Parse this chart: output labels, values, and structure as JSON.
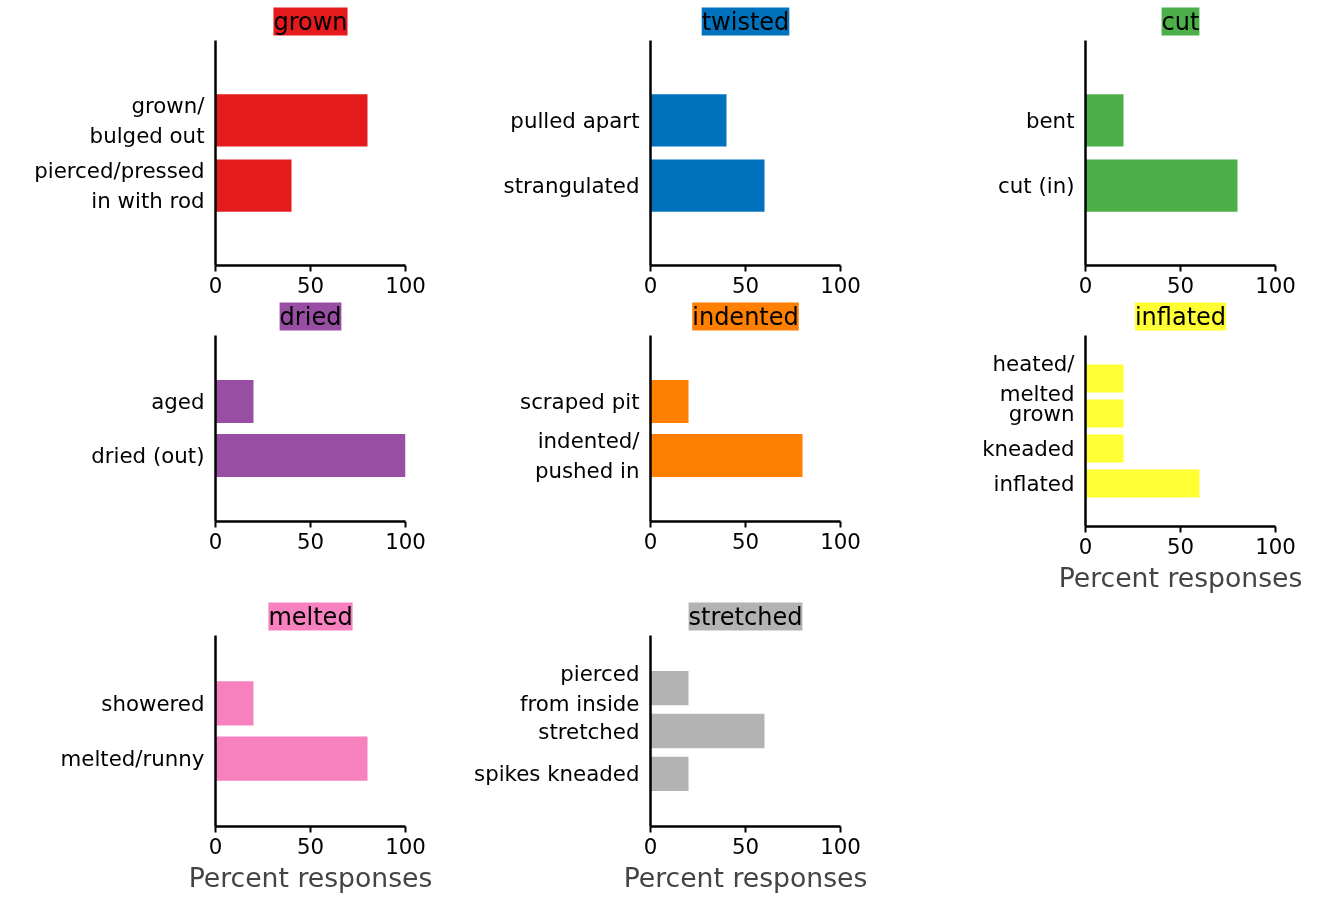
{
  "chart_data": [
    {
      "type": "bar",
      "orientation": "horizontal",
      "title": "grown",
      "categories": [
        "grown/\nbulged out",
        "pierced/pressed\nin with rod"
      ],
      "values": [
        80,
        40
      ],
      "color": "#e41a1c",
      "xlim": [
        0,
        100
      ],
      "xticks": [
        0,
        50,
        100
      ],
      "grid": false
    },
    {
      "type": "bar",
      "orientation": "horizontal",
      "title": "twisted",
      "categories": [
        "pulled apart",
        "strangulated"
      ],
      "values": [
        40,
        60
      ],
      "color": "#0072bd",
      "xlim": [
        0,
        100
      ],
      "xticks": [
        0,
        50,
        100
      ],
      "grid": false
    },
    {
      "type": "bar",
      "orientation": "horizontal",
      "title": "cut",
      "categories": [
        "bent",
        "cut (in)"
      ],
      "values": [
        20,
        80
      ],
      "color": "#4daf4a",
      "xlim": [
        0,
        100
      ],
      "xticks": [
        0,
        50,
        100
      ],
      "grid": false
    },
    {
      "type": "bar",
      "orientation": "horizontal",
      "title": "dried",
      "categories": [
        "aged",
        "dried (out)"
      ],
      "values": [
        20,
        100
      ],
      "color": "#984ea3",
      "xlim": [
        0,
        100
      ],
      "xticks": [
        0,
        50,
        100
      ],
      "grid": false
    },
    {
      "type": "bar",
      "orientation": "horizontal",
      "title": "indented",
      "categories": [
        "scraped pit",
        "indented/\npushed in"
      ],
      "values": [
        20,
        80
      ],
      "color": "#ff7f00",
      "xlim": [
        0,
        100
      ],
      "xticks": [
        0,
        50,
        100
      ],
      "grid": false
    },
    {
      "type": "bar",
      "orientation": "horizontal",
      "title": "inflated",
      "categories": [
        "heated/\nmelted",
        "grown",
        "kneaded",
        "inflated"
      ],
      "values": [
        20,
        20,
        20,
        60
      ],
      "color": "#ffff33",
      "xlim": [
        0,
        100
      ],
      "xticks": [
        0,
        50,
        100
      ],
      "grid": false,
      "xlabel": "Percent responses"
    },
    {
      "type": "bar",
      "orientation": "horizontal",
      "title": "melted",
      "categories": [
        "showered",
        "melted/runny"
      ],
      "values": [
        20,
        80
      ],
      "color": "#f781bf",
      "xlim": [
        0,
        100
      ],
      "xticks": [
        0,
        50,
        100
      ],
      "grid": false,
      "xlabel": "Percent responses"
    },
    {
      "type": "bar",
      "orientation": "horizontal",
      "title": "stretched",
      "categories": [
        "pierced\nfrom inside",
        "stretched",
        "spikes kneaded"
      ],
      "values": [
        20,
        60,
        20
      ],
      "color": "#b3b3b3",
      "xlim": [
        0,
        100
      ],
      "xticks": [
        0,
        50,
        100
      ],
      "grid": false,
      "xlabel": "Percent responses"
    }
  ]
}
